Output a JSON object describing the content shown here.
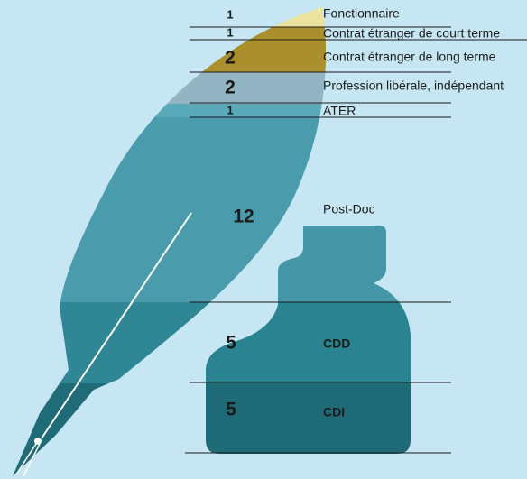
{
  "items": [
    {
      "count": 1,
      "label": "Fonctionnaire"
    },
    {
      "count": 1,
      "label": "Contrat étranger de court terme"
    },
    {
      "count": 2,
      "label": "Contrat étranger de long terme"
    },
    {
      "count": 2,
      "label": "Profession libérale, indépendant"
    },
    {
      "count": 1,
      "label": "ATER"
    },
    {
      "count": 12,
      "label": "Post-Doc"
    },
    {
      "count": 5,
      "label": "CDD"
    },
    {
      "count": 5,
      "label": "CDI"
    }
  ]
}
